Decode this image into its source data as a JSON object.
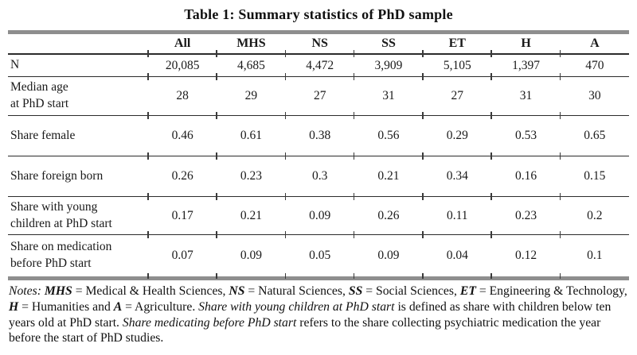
{
  "page": {
    "title": "Table 1: Summary statistics of PhD sample"
  },
  "table": {
    "corner_label": "",
    "columns": [
      "All",
      "MHS",
      "NS",
      "SS",
      "ET",
      "H",
      "A"
    ],
    "rows": [
      {
        "label": "N",
        "values": [
          "20,085",
          "4,685",
          "4,472",
          "3,909",
          "5,105",
          "1,397",
          "470"
        ]
      },
      {
        "label": "Median age\nat PhD start",
        "values": [
          "28",
          "29",
          "27",
          "31",
          "27",
          "31",
          "30"
        ]
      },
      {
        "label": "Share female",
        "values": [
          "0.46",
          "0.61",
          "0.38",
          "0.56",
          "0.29",
          "0.53",
          "0.65"
        ]
      },
      {
        "label": "Share foreign born",
        "values": [
          "0.26",
          "0.23",
          "0.3",
          "0.21",
          "0.34",
          "0.16",
          "0.15"
        ]
      },
      {
        "label": "Share with young\nchildren at PhD start",
        "values": [
          "0.17",
          "0.21",
          "0.09",
          "0.26",
          "0.11",
          "0.23",
          "0.2"
        ]
      },
      {
        "label": "Share on medication\nbefore PhD start",
        "values": [
          "0.07",
          "0.09",
          "0.05",
          "0.09",
          "0.04",
          "0.12",
          "0.1"
        ]
      }
    ]
  },
  "notes": {
    "segments": [
      {
        "text": "Notes: ",
        "style": "i"
      },
      {
        "text": "MHS",
        "style": "bi"
      },
      {
        "text": " = Medical & Health Sciences, ",
        "style": ""
      },
      {
        "text": "NS",
        "style": "bi"
      },
      {
        "text": " = Natural Sciences, ",
        "style": ""
      },
      {
        "text": "SS",
        "style": "bi"
      },
      {
        "text": " = Social Sciences, ",
        "style": ""
      },
      {
        "text": "ET",
        "style": "bi"
      },
      {
        "text": " = Engineering & Technology, ",
        "style": ""
      },
      {
        "text": "H",
        "style": "bi"
      },
      {
        "text": " = Humanities and ",
        "style": ""
      },
      {
        "text": "A",
        "style": "bi"
      },
      {
        "text": " = Agriculture. ",
        "style": ""
      },
      {
        "text": "Share with young children at PhD start",
        "style": "i"
      },
      {
        "text": " is defined as share with children below ten years old at PhD start. ",
        "style": ""
      },
      {
        "text": "Share medicating before PhD start",
        "style": "i"
      },
      {
        "text": " refers to the share collecting psychiatric medication the year before the start of PhD studies.",
        "style": ""
      }
    ]
  }
}
